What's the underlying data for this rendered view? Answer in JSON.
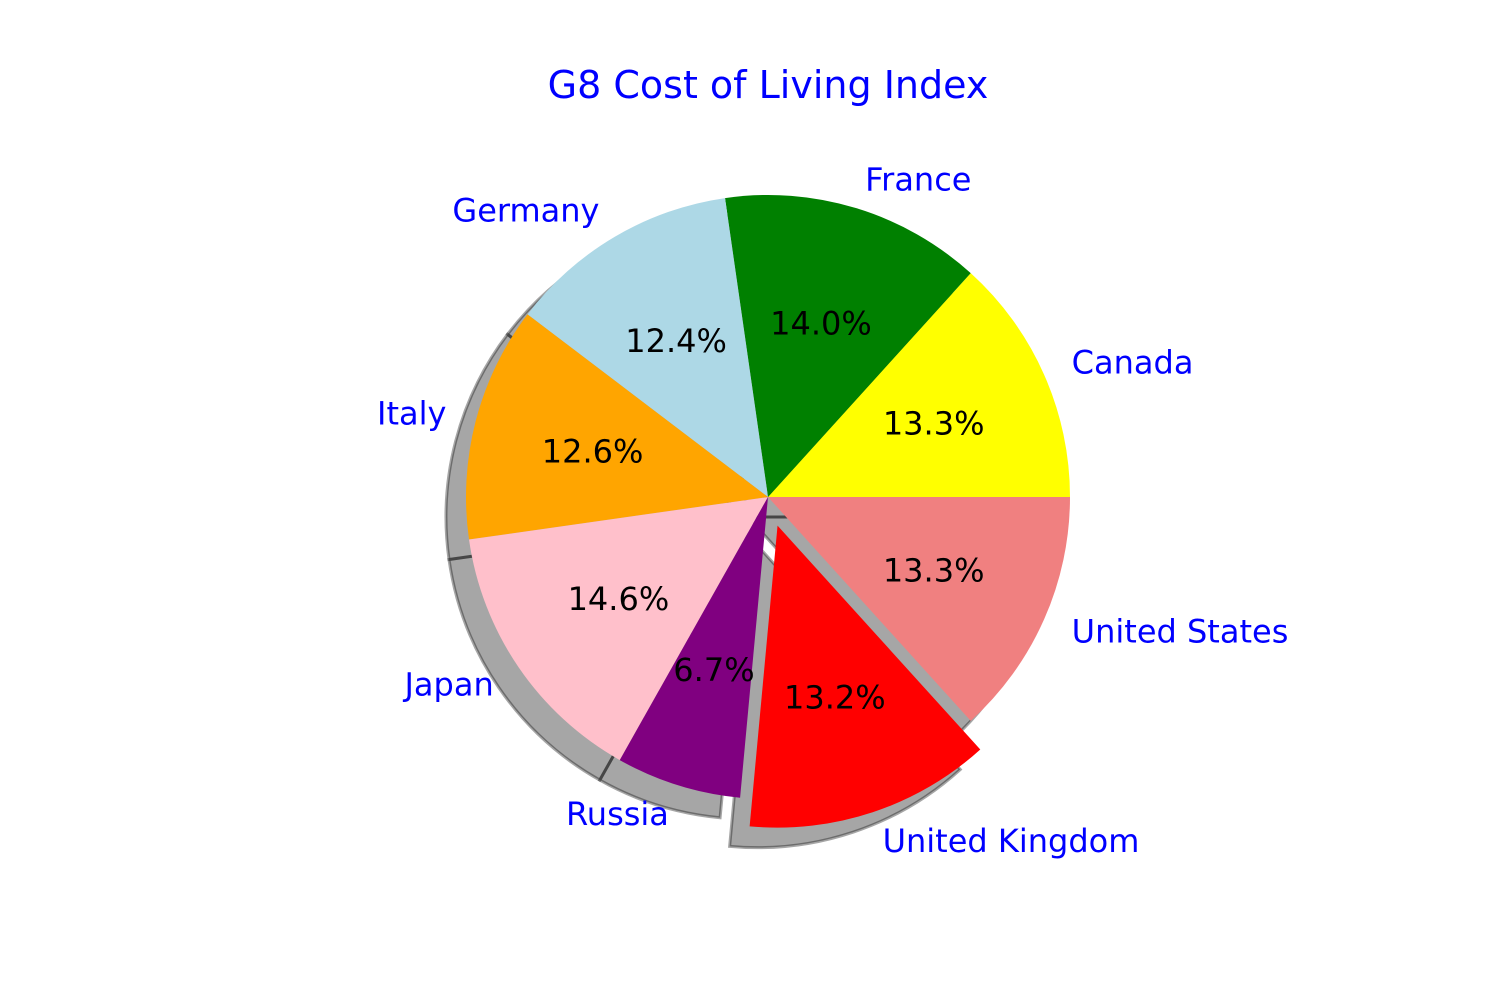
{
  "chart_data": {
    "type": "pie",
    "title": "G8 Cost of Living Index",
    "title_color": "#0000ff",
    "label_color": "#0000ff",
    "pct_color": "#000000",
    "start_angle_deg": 0,
    "direction": "counterclockwise",
    "shadow": true,
    "slices": [
      {
        "label": "Canada",
        "pct": "13.3%",
        "value": 13.3,
        "color": "#ffff00",
        "explode": 0
      },
      {
        "label": "France",
        "pct": "14.0%",
        "value": 14.0,
        "color": "#008000",
        "explode": 0
      },
      {
        "label": "Germany",
        "pct": "12.4%",
        "value": 12.4,
        "color": "#add8e6",
        "explode": 0
      },
      {
        "label": "Italy",
        "pct": "12.6%",
        "value": 12.6,
        "color": "#ffa500",
        "explode": 0
      },
      {
        "label": "Japan",
        "pct": "14.6%",
        "value": 14.6,
        "color": "#ffc0cb",
        "explode": 0
      },
      {
        "label": "Russia",
        "pct": "6.7%",
        "value": 6.7,
        "color": "#800080",
        "explode": 0
      },
      {
        "label": "United Kingdom",
        "pct": "13.2%",
        "value": 13.2,
        "color": "#ff0000",
        "explode": 0.1
      },
      {
        "label": "United States",
        "pct": "13.3%",
        "value": 13.3,
        "color": "#f08080",
        "explode": 0
      }
    ]
  }
}
